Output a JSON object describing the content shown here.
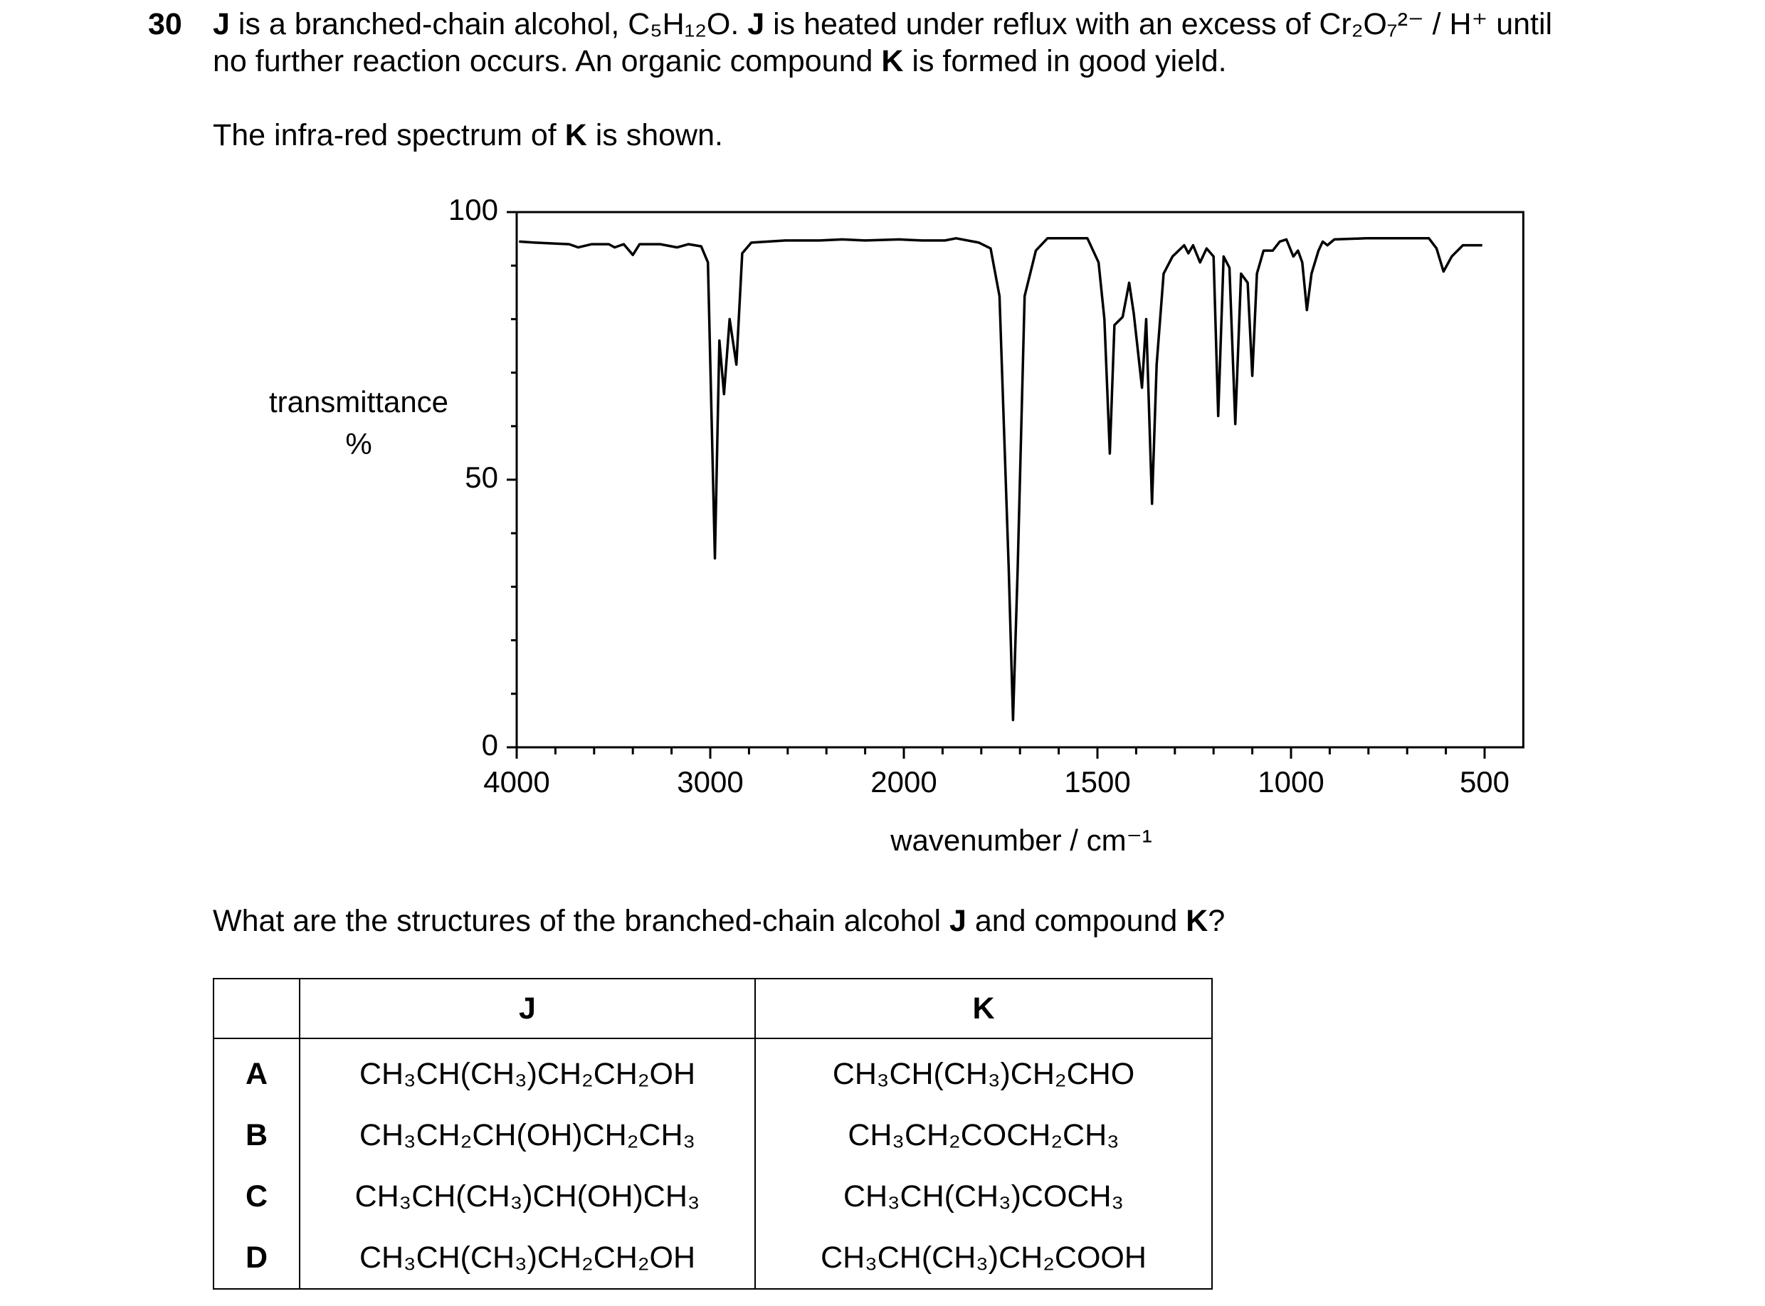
{
  "question": {
    "number": "30",
    "lines": [
      [
        {
          "text": "J",
          "bold": true
        },
        " is a branched-chain alcohol, C₅H₁₂O. ",
        {
          "text": "J",
          "bold": true
        },
        " is heated under reflux with an excess of Cr₂O₇²⁻ / H⁺ until"
      ],
      [
        "no further reaction occurs. An organic compound ",
        {
          "text": "K",
          "bold": true
        },
        " is formed in good yield."
      ]
    ],
    "caption": [
      "The infra-red spectrum of ",
      {
        "text": "K",
        "bold": true
      },
      " is shown."
    ],
    "prompt": [
      "What are the structures of the branched-chain alcohol ",
      {
        "text": "J",
        "bold": true
      },
      " and compound ",
      {
        "text": "K",
        "bold": true
      },
      "?"
    ]
  },
  "chart_data": {
    "type": "line",
    "xlabel": "wavenumber / cm⁻¹",
    "ylabel": [
      "transmittance",
      "%"
    ],
    "color": "#000000",
    "xlim": [
      4000,
      400
    ],
    "ylim": [
      0,
      100
    ],
    "xticks": [
      4000,
      3000,
      2000,
      1500,
      1000,
      500
    ],
    "xminorticks": [
      3800,
      3600,
      3400,
      3200,
      2800,
      2600,
      2400,
      2200,
      1900,
      1800,
      1700,
      1600,
      1400,
      1300,
      1200,
      1100,
      900,
      800,
      700,
      600
    ],
    "yticks": [
      0,
      50,
      100
    ],
    "yminorticks": [
      10,
      20,
      30,
      40,
      60,
      70,
      80,
      90
    ],
    "x": [
      3988,
      3906,
      3729,
      3682,
      3612,
      3524,
      3494,
      3447,
      3400,
      3365,
      3259,
      3171,
      3112,
      3047,
      3012,
      2976,
      2953,
      2929,
      2900,
      2865,
      2835,
      2788,
      2612,
      2435,
      2318,
      2200,
      2024,
      1953,
      1894,
      1865,
      1806,
      1776,
      1753,
      1729,
      1718,
      1706,
      1688,
      1659,
      1629,
      1526,
      1497,
      1482,
      1468,
      1456,
      1435,
      1418,
      1406,
      1385,
      1374,
      1359,
      1347,
      1329,
      1306,
      1276,
      1265,
      1253,
      1235,
      1218,
      1200,
      1188,
      1174,
      1159,
      1144,
      1129,
      1112,
      1100,
      1088,
      1071,
      1047,
      1029,
      1012,
      994,
      982,
      971,
      959,
      947,
      929,
      918,
      906,
      888,
      806,
      644,
      624,
      606,
      585,
      556,
      506
    ],
    "values": [
      94.5,
      94.3,
      94,
      93.4,
      94,
      94,
      93.4,
      94,
      92,
      94,
      94,
      93.4,
      94,
      93.6,
      90.6,
      35.3,
      76,
      66,
      80,
      71.5,
      92.3,
      94.3,
      94.7,
      94.7,
      94.9,
      94.7,
      94.9,
      94.7,
      94.7,
      95.1,
      94.3,
      93.2,
      84.3,
      33.2,
      5.1,
      33.2,
      84.3,
      92.8,
      95.1,
      95.1,
      90.6,
      80,
      54.9,
      78.9,
      80.4,
      86.8,
      81,
      67.2,
      80,
      45.5,
      71.5,
      88.5,
      91.7,
      93.8,
      92.3,
      93.8,
      90.6,
      93.2,
      91.7,
      61.9,
      91.7,
      89.6,
      60.4,
      88.5,
      86.8,
      69.4,
      88.5,
      92.8,
      92.8,
      94.5,
      94.9,
      91.7,
      92.8,
      90.6,
      81.7,
      88.5,
      92.8,
      94.5,
      93.8,
      94.9,
      95.1,
      95.1,
      93.2,
      88.9,
      91.7,
      93.8,
      93.8
    ]
  },
  "table": {
    "header": [
      "J",
      "K"
    ],
    "rows": [
      [
        "A",
        "CH₃CH(CH₃)CH₂CH₂OH",
        "CH₃CH(CH₃)CH₂CHO"
      ],
      [
        "B",
        "CH₃CH₂CH(OH)CH₂CH₃",
        "CH₃CH₂COCH₂CH₃"
      ],
      [
        "C",
        "CH₃CH(CH₃)CH(OH)CH₃",
        "CH₃CH(CH₃)COCH₃"
      ],
      [
        "D",
        "CH₃CH(CH₃)CH₂CH₂OH",
        "CH₃CH(CH₃)CH₂COOH"
      ]
    ]
  }
}
